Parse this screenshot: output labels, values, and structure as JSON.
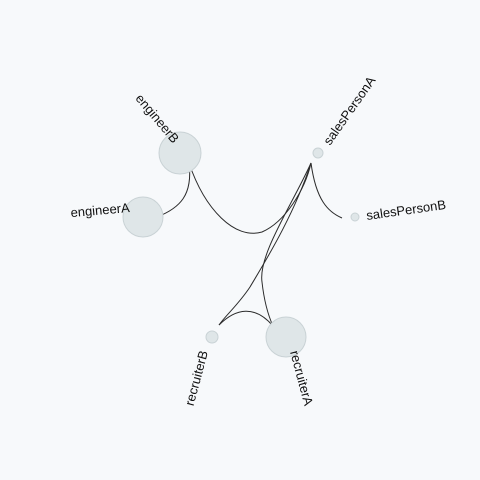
{
  "nodes": [
    {
      "id": "engineerA",
      "label": "engineerA",
      "size": "large"
    },
    {
      "id": "engineerB",
      "label": "engineerB",
      "size": "large"
    },
    {
      "id": "salesPersonA",
      "label": "salesPersonA",
      "size": "small"
    },
    {
      "id": "salesPersonB",
      "label": "salesPersonB",
      "size": "small"
    },
    {
      "id": "recruiterA",
      "label": "recruiterA",
      "size": "large"
    },
    {
      "id": "recruiterB",
      "label": "recruiterB",
      "size": "small"
    }
  ],
  "edges": [
    {
      "source": "engineerA",
      "target": "engineerB"
    },
    {
      "source": "engineerB",
      "target": "salesPersonA"
    },
    {
      "source": "salesPersonA",
      "target": "salesPersonB"
    },
    {
      "source": "salesPersonA",
      "target": "recruiterA"
    },
    {
      "source": "salesPersonA",
      "target": "recruiterB"
    },
    {
      "source": "recruiterA",
      "target": "recruiterB"
    }
  ],
  "colors": {
    "background": "#f7f9fb",
    "node_fill": "#dfe6e8",
    "node_stroke": "#c9d2d5",
    "edge": "#2b2b2b"
  }
}
